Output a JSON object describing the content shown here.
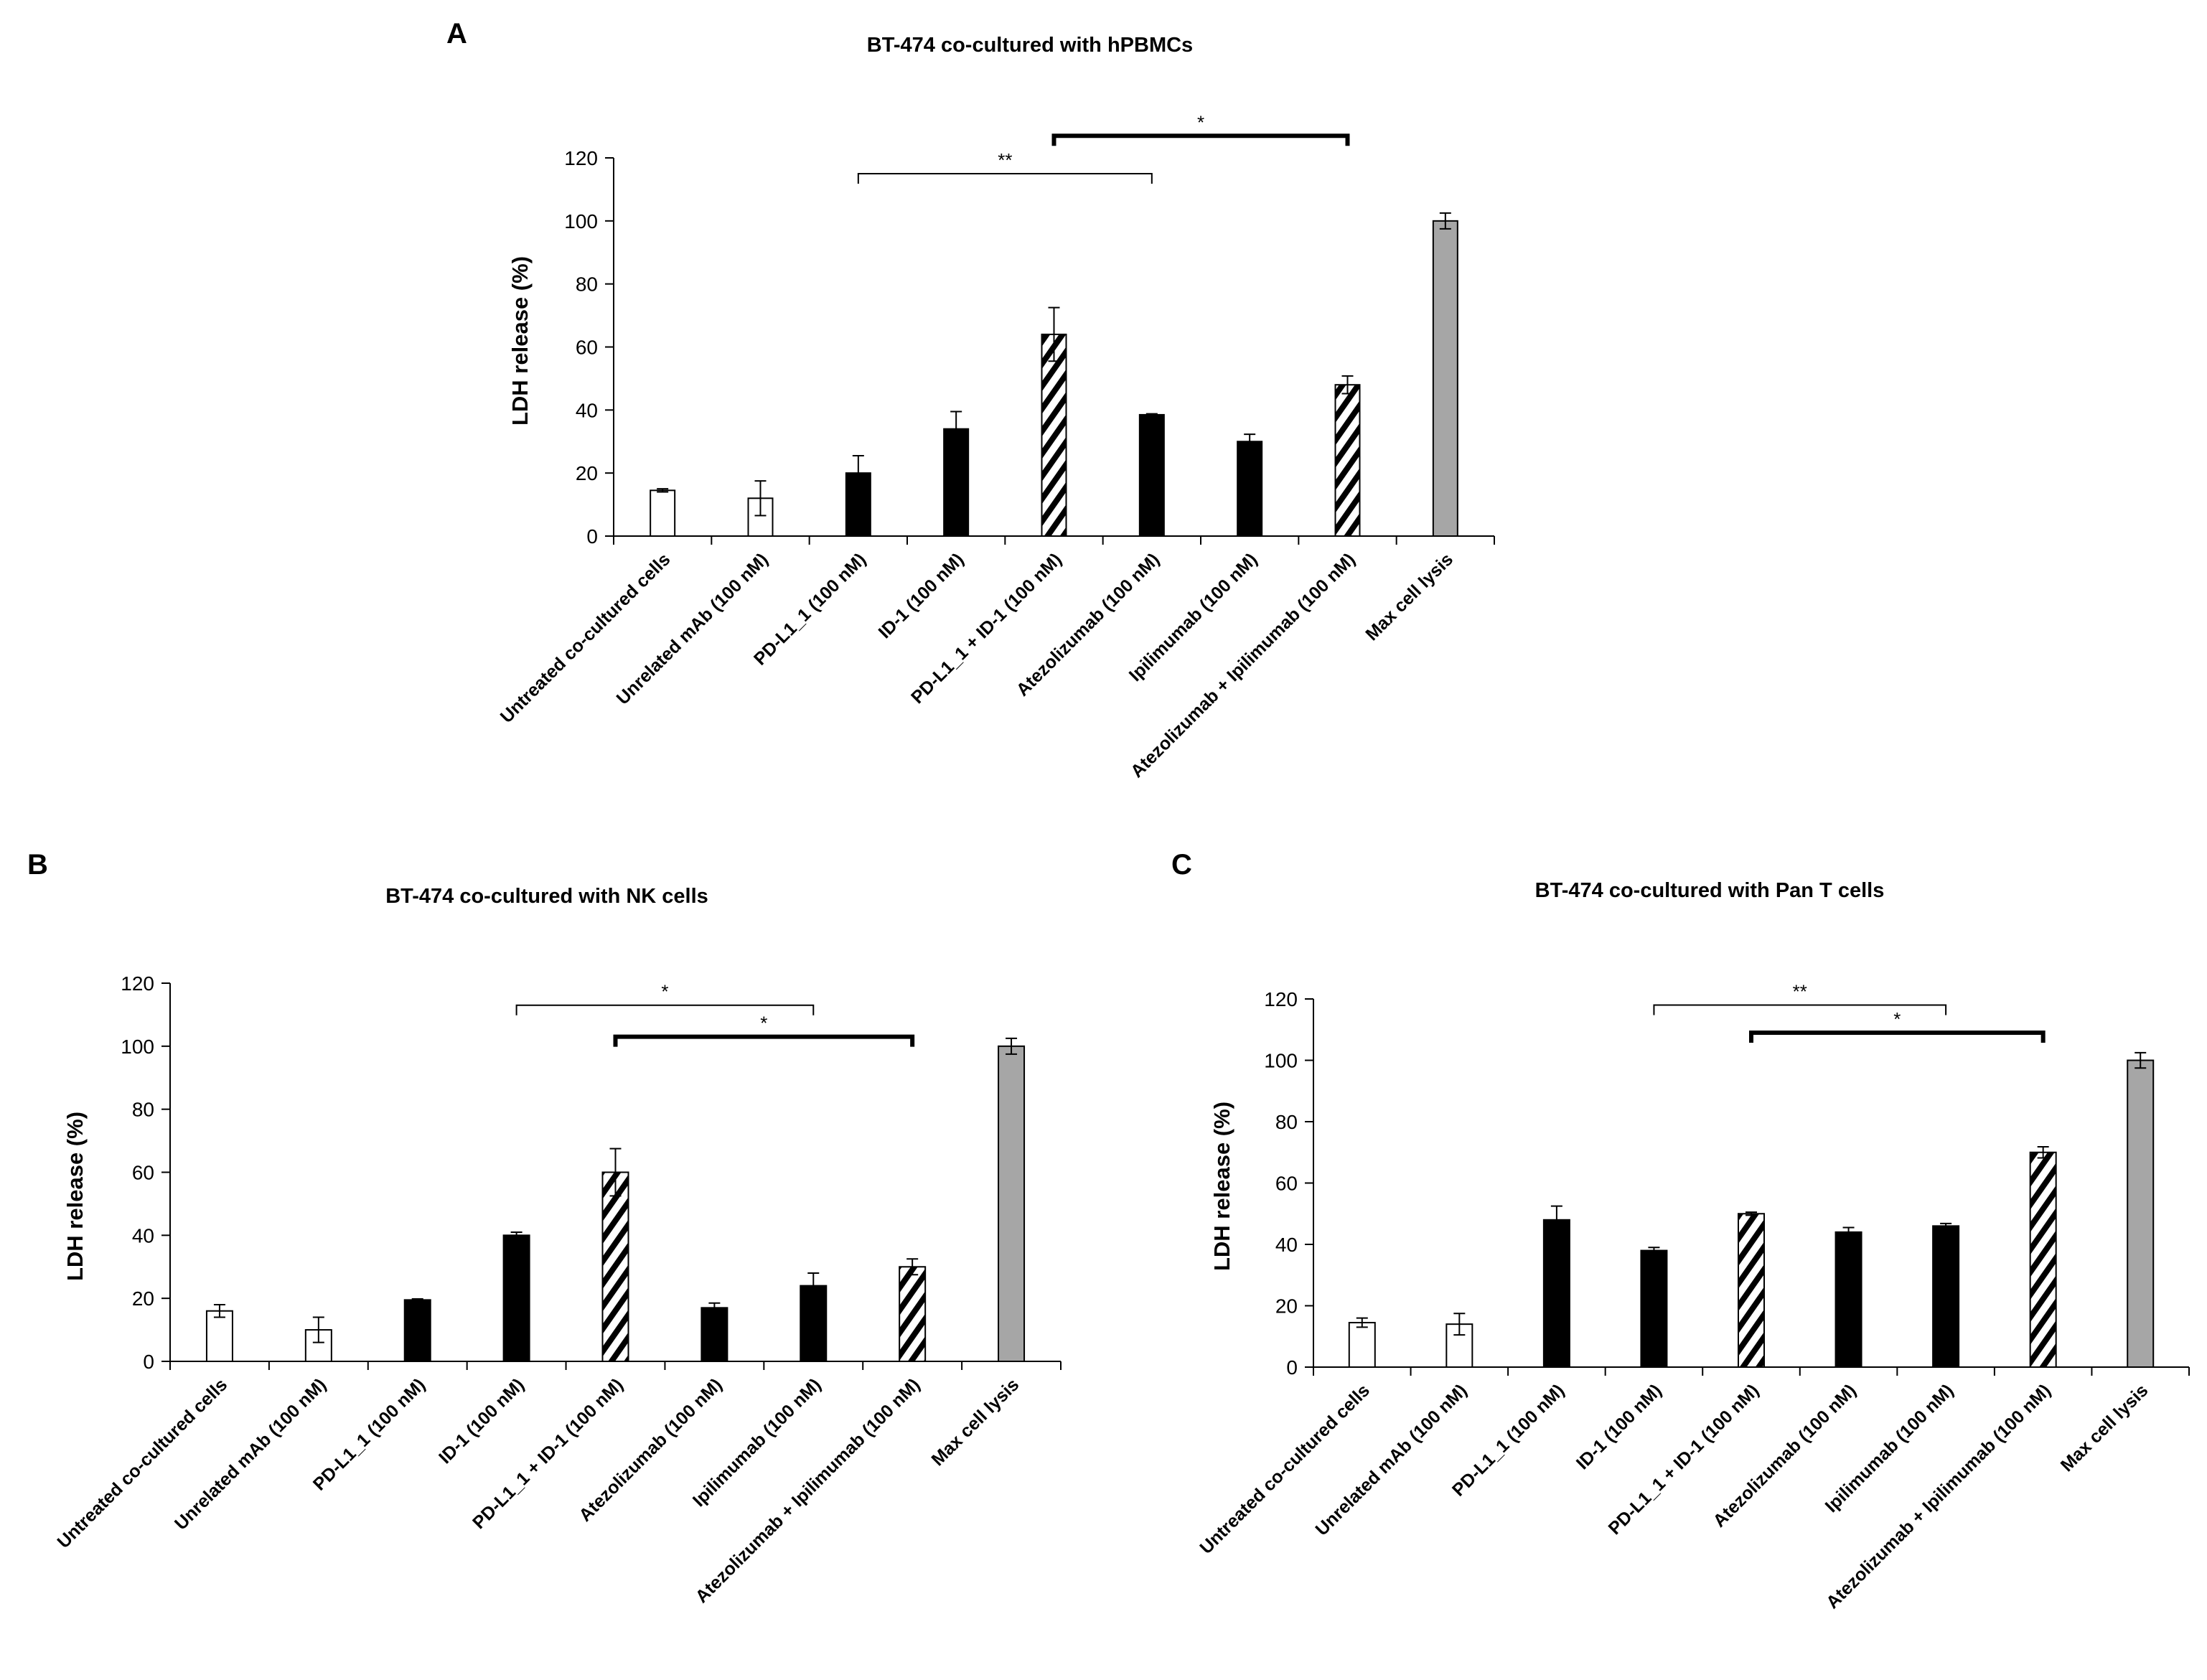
{
  "figure": {
    "background": "#ffffff"
  },
  "styles": {
    "white": {
      "fill": "#ffffff",
      "stroke": "#000000"
    },
    "black": {
      "fill": "#000000",
      "stroke": "#000000"
    },
    "hatched": {
      "fill": "pattern",
      "stroke": "#000000"
    },
    "gray": {
      "fill": "#a6a6a6",
      "stroke": "#000000"
    }
  },
  "chart_data": [
    {
      "panel": "A",
      "type": "bar",
      "title": "BT-474 co-cultured with hPBMCs",
      "ylabel": "LDH release (%)",
      "xlabel": "",
      "ylim": [
        0,
        120
      ],
      "yticks": [
        0,
        20,
        40,
        60,
        80,
        100,
        120
      ],
      "categories": [
        "Untreated co-cultured cells",
        "Unrelated mAb (100 nM)",
        "PD-L1_1 (100 nM)",
        "ID-1 (100 nM)",
        "PD-L1_1 + ID-1 (100 nM)",
        "Atezolizumab (100 nM)",
        "Ipilimumab (100 nM)",
        "Atezolizumab + Ipilimumab (100 nM)",
        "Max cell lysis"
      ],
      "values": [
        14.5,
        12,
        20,
        34,
        64,
        38.5,
        30,
        48,
        100
      ],
      "errors": [
        0.5,
        5.5,
        5.5,
        5.5,
        8.5,
        0.3,
        2.3,
        2.8,
        2.5
      ],
      "styles": [
        "white",
        "white",
        "black",
        "black",
        "hatched",
        "black",
        "black",
        "hatched",
        "gray"
      ],
      "brackets": [
        {
          "from": 2,
          "to": 5,
          "y": 115,
          "label": "**",
          "thick": false
        },
        {
          "from": 4,
          "to": 7,
          "y": 127,
          "label": "*",
          "thick": true
        }
      ]
    },
    {
      "panel": "B",
      "type": "bar",
      "title": "BT-474 co-cultured with NK cells",
      "ylabel": "LDH release (%)",
      "xlabel": "",
      "ylim": [
        0,
        120
      ],
      "yticks": [
        0,
        20,
        40,
        60,
        80,
        100,
        120
      ],
      "categories": [
        "Untreated co-cultured cells",
        "Unrelated mAb (100 nM)",
        "PD-L1_1 (100 nM)",
        "ID-1 (100 nM)",
        "PD-L1_1 + ID-1 (100 nM)",
        "Atezolizumab (100 nM)",
        "Ipilimumab (100 nM)",
        "Atezolizumab + Ipilimumab (100 nM)",
        "Max cell lysis"
      ],
      "values": [
        16,
        10,
        19.5,
        40,
        60,
        17,
        24,
        30,
        100
      ],
      "errors": [
        2,
        4,
        0.3,
        1,
        7.5,
        1.5,
        4,
        2.5,
        2.5
      ],
      "styles": [
        "white",
        "white",
        "black",
        "black",
        "hatched",
        "black",
        "black",
        "hatched",
        "gray"
      ],
      "brackets": [
        {
          "from": 3,
          "to": 6,
          "y": 113,
          "label": "*",
          "thick": false
        },
        {
          "from": 4,
          "to": 7,
          "y": 103,
          "label": "*",
          "thick": true
        }
      ]
    },
    {
      "panel": "C",
      "type": "bar",
      "title": "BT-474 co-cultured with Pan T cells",
      "ylabel": "LDH release (%)",
      "xlabel": "",
      "ylim": [
        0,
        120
      ],
      "yticks": [
        0,
        20,
        40,
        60,
        80,
        100,
        120
      ],
      "categories": [
        "Untreated co-cultured cells",
        "Unrelated mAb (100 nM)",
        "PD-L1_1 (100 nM)",
        "ID-1 (100 nM)",
        "PD-L1_1 + ID-1 (100 nM)",
        "Atezolizumab (100 nM)",
        "Ipilimumab (100 nM)",
        "Atezolizumab + Ipilimumab (100 nM)",
        "Max cell lysis"
      ],
      "values": [
        14.5,
        14,
        48,
        38,
        50,
        44,
        46,
        70,
        100
      ],
      "errors": [
        1.5,
        3.5,
        4.5,
        1,
        0.5,
        1.5,
        0.8,
        1.8,
        2.5
      ],
      "styles": [
        "white",
        "white",
        "black",
        "black",
        "hatched",
        "black",
        "black",
        "hatched",
        "gray"
      ],
      "brackets": [
        {
          "from": 3,
          "to": 6,
          "y": 118,
          "label": "**",
          "thick": false
        },
        {
          "from": 4,
          "to": 7,
          "y": 109,
          "label": "*",
          "thick": true
        }
      ]
    }
  ]
}
